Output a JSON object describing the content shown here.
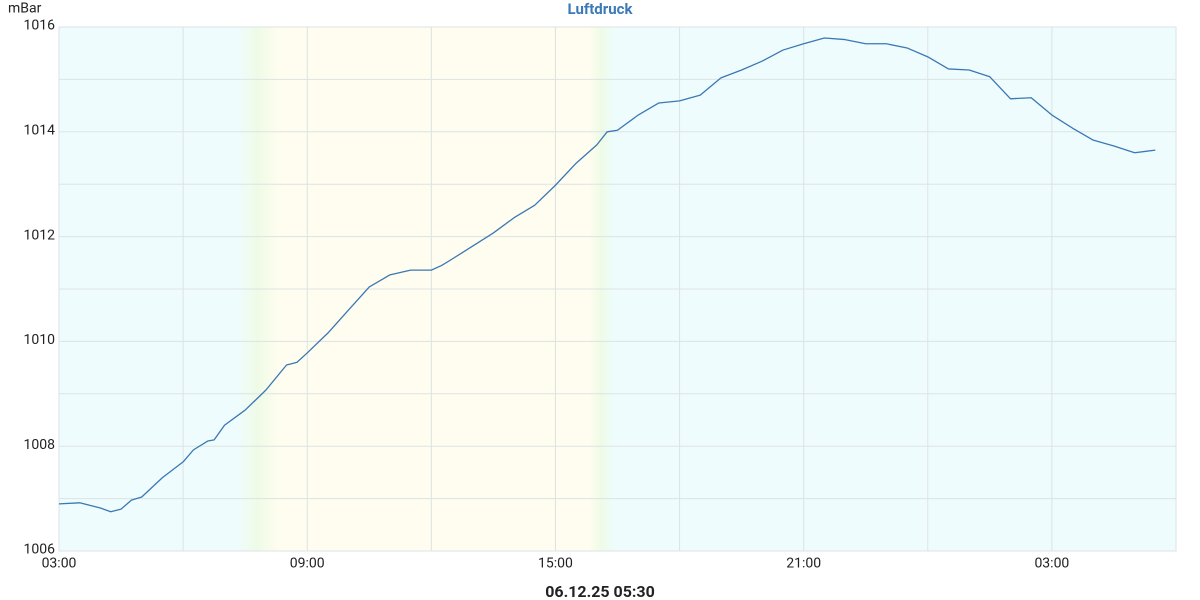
{
  "chart_data": {
    "type": "line",
    "title": "Luftdruck",
    "y_label": "mBar",
    "footer": "06.12.25 05:30",
    "x": [
      0,
      0.5,
      1,
      1.25,
      1.5,
      1.75,
      2,
      2.5,
      3,
      3.25,
      3.6,
      3.75,
      4,
      4.5,
      5,
      5.5,
      5.75,
      6,
      6.5,
      7,
      7.5,
      8,
      8.5,
      9,
      9.25,
      9.5,
      10,
      10.5,
      11,
      11.5,
      12,
      12.5,
      13,
      13.25,
      13.5,
      14,
      14.5,
      15,
      15.5,
      16,
      16.5,
      17,
      17.5,
      18,
      18.5,
      19,
      19.5,
      20,
      20.5,
      21,
      21.5,
      22,
      22.5,
      23,
      23.5,
      24,
      24.5,
      25,
      25.5,
      26,
      26.5
    ],
    "series": [
      {
        "name": "Luftdruck",
        "color": "#3b78b3",
        "values": [
          1006.9,
          1006.92,
          1006.82,
          1006.75,
          1006.8,
          1006.97,
          1007.03,
          1007.4,
          1007.7,
          1007.93,
          1008.1,
          1008.12,
          1008.4,
          1008.69,
          1009.07,
          1009.55,
          1009.6,
          1009.78,
          1010.16,
          1010.6,
          1011.04,
          1011.27,
          1011.36,
          1011.36,
          1011.45,
          1011.57,
          1011.82,
          1012.07,
          1012.36,
          1012.6,
          1012.98,
          1013.4,
          1013.75,
          1014.0,
          1014.03,
          1014.32,
          1014.55,
          1014.59,
          1014.7,
          1015.03,
          1015.18,
          1015.35,
          1015.56,
          1015.68,
          1015.79,
          1015.76,
          1015.68,
          1015.68,
          1015.6,
          1015.43,
          1015.2,
          1015.18,
          1015.05,
          1014.63,
          1014.65,
          1014.32,
          1014.07,
          1013.84,
          1013.73,
          1013.6,
          1013.65
        ]
      }
    ],
    "xlim": [
      0,
      27
    ],
    "xticks": [
      {
        "value": 0,
        "label": "03:00"
      },
      {
        "value": 6,
        "label": "09:00"
      },
      {
        "value": 12,
        "label": "15:00"
      },
      {
        "value": 18,
        "label": "21:00"
      },
      {
        "value": 24,
        "label": "03:00"
      }
    ],
    "xminor_ticks": [
      3,
      9,
      15,
      21
    ],
    "ylim": [
      1006,
      1016
    ],
    "yticks": [
      1006,
      1008,
      1010,
      1012,
      1014,
      1016
    ],
    "yminor_ticks": [
      1007,
      1009,
      1011,
      1013,
      1015
    ],
    "grid": true
  }
}
